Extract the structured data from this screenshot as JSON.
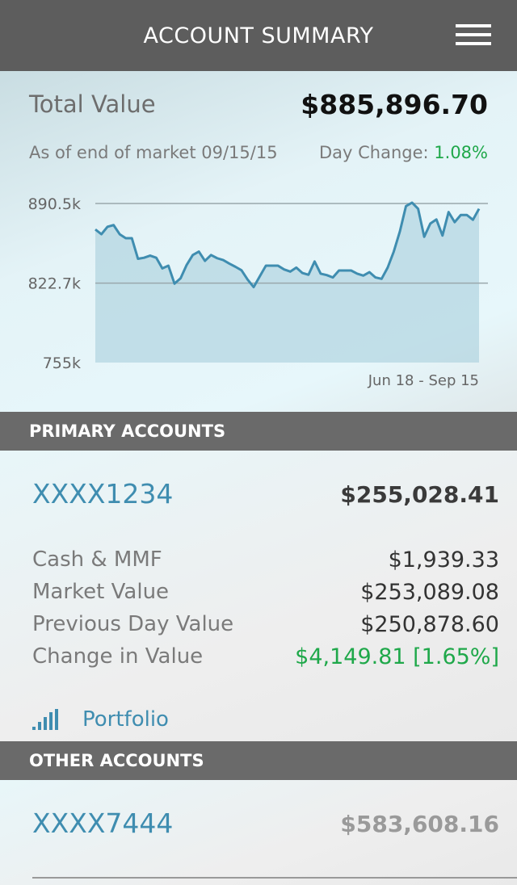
{
  "header": {
    "title": "ACCOUNT SUMMARY",
    "menu_icon": "hamburger-menu-icon"
  },
  "summary": {
    "total_label": "Total Value",
    "total_value": "$885,896.70",
    "as_of": "As of end of market 09/15/15",
    "day_change_label": "Day Change:",
    "day_change_value": "1.08%"
  },
  "colors": {
    "accent": "#3f8db0",
    "positive": "#1fa84a",
    "header_bg": "#5d5d5d",
    "section_bg": "#6a6a6a"
  },
  "chart_data": {
    "type": "area",
    "ylim": [
      755,
      890.5
    ],
    "y_ticks": [
      "890.5k",
      "822.7k",
      "755k"
    ],
    "y_tick_values": [
      890.5,
      822.7,
      755
    ],
    "x_range_label": "Jun 18 - Sep 15",
    "grid": true,
    "values": [
      868.4,
      864.3,
      870.7,
      872.1,
      864.3,
      860.9,
      860.9,
      843.4,
      844.3,
      846.1,
      844.3,
      835.2,
      837.5,
      822.2,
      826.8,
      838.2,
      846.6,
      849.5,
      841.6,
      846.6,
      843.9,
      842.3,
      839.3,
      836.6,
      833.6,
      825.7,
      819.3,
      828.4,
      837.5,
      837.5,
      837.5,
      834.3,
      832.5,
      835.9,
      831.3,
      829.8,
      841.1,
      830.7,
      829.5,
      827.5,
      833.4,
      833.4,
      833.4,
      830.7,
      829.1,
      832.0,
      827.5,
      826.3,
      835.9,
      849.5,
      866.6,
      888.2,
      891.2,
      886.0,
      862.1,
      873.4,
      876.9,
      863.2,
      883.2,
      874.6,
      880.7,
      880.7,
      876.6,
      886.0
    ]
  },
  "primary": {
    "section_label": "PRIMARY ACCOUNTS",
    "account_id": "XXXX1234",
    "account_total": "$255,028.41",
    "rows": [
      {
        "label": "Cash & MMF",
        "value": "$1,939.33"
      },
      {
        "label": "Market Value",
        "value": "$253,089.08"
      },
      {
        "label": "Previous Day Value",
        "value": "$250,878.60"
      },
      {
        "label": "Change in Value",
        "value": "$4,149.81 [1.65%]"
      }
    ],
    "portfolio_label": "Portfolio"
  },
  "other": {
    "section_label": "OTHER ACCOUNTS",
    "account_id": "XXXX7444",
    "account_total": "$583,608.16"
  }
}
